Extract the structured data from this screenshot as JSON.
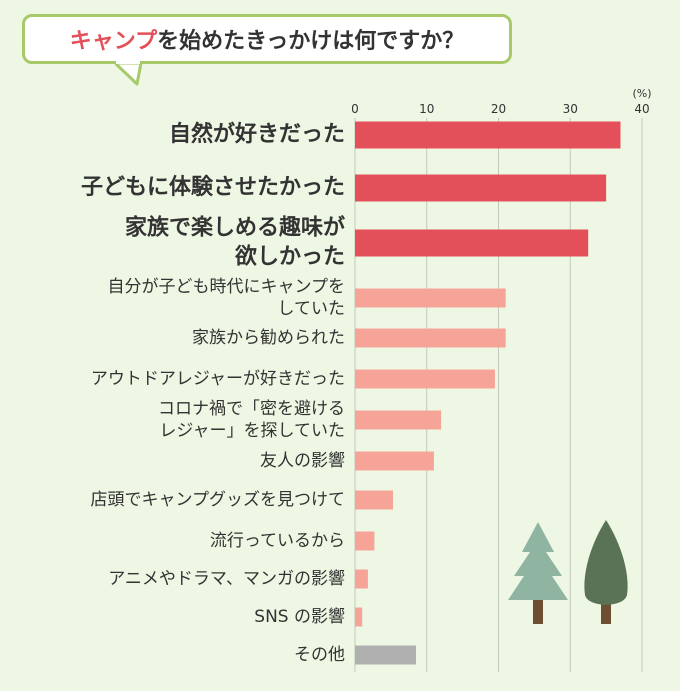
{
  "title": {
    "accent": "キャンプ",
    "rest": "を始めたきっかけは何ですか？"
  },
  "chart_data": {
    "type": "bar",
    "orientation": "horizontal",
    "unit_label": "(%)",
    "xlim": [
      0,
      40
    ],
    "ticks": [
      "0",
      "10",
      "20",
      "30",
      "40"
    ],
    "grid": true,
    "categories": [
      [
        "自然が好きだった"
      ],
      [
        "子どもに体験させたかった"
      ],
      [
        "家族で楽しめる趣味が",
        "欲しかった"
      ],
      [
        "自分が子ども時代にキャンプを",
        "していた"
      ],
      [
        "家族から勧められた"
      ],
      [
        "アウトドアレジャーが好きだった"
      ],
      [
        "コロナ禍で「密を避ける",
        "レジャー」を探していた"
      ],
      [
        "友人の影響"
      ],
      [
        "店頭でキャンプグッズを見つけて"
      ],
      [
        "流行っているから"
      ],
      [
        "アニメやドラマ、マンガの影響"
      ],
      [
        "SNS の影響"
      ],
      [
        "その他"
      ]
    ],
    "values": [
      37,
      35,
      32.5,
      21,
      21,
      19.5,
      12,
      11,
      5.3,
      2.7,
      1.8,
      1.0,
      8.5
    ],
    "tiers": [
      "top",
      "top",
      "top",
      "mid",
      "mid",
      "mid",
      "mid",
      "mid",
      "mid",
      "mid",
      "mid",
      "mid",
      "other"
    ],
    "colors": {
      "top": "#e4505a",
      "mid": "#f5a497",
      "other": "#b0b0b0",
      "grid": "#c2c9bd",
      "text": "#333333"
    }
  },
  "decoration": {
    "icons": [
      "tree-icon-light",
      "tree-icon-dark"
    ]
  }
}
